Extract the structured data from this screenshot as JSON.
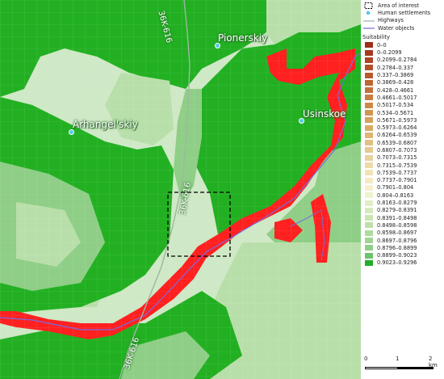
{
  "map": {
    "colors": {
      "base": "#cfe8c6",
      "light": "#b8dfa9",
      "mid": "#8fce86",
      "green": "#22b022",
      "red": "#ff2020",
      "grid": "#6fcf6f",
      "river": "#7a6adf",
      "road": "#9db8a0"
    },
    "settlements": [
      {
        "name": "Pionerskiy"
      },
      {
        "name": "Usinskoe"
      },
      {
        "name": "Arhangel'skiy"
      }
    ],
    "roads": [
      {
        "label": "36K-616"
      },
      {
        "label": "36K-616"
      },
      {
        "label": "36K-616"
      }
    ]
  },
  "legend": {
    "items": [
      {
        "label": "Area of interest",
        "icon": "dashed-box-icon"
      },
      {
        "label": "Human settlements",
        "icon": "dot-icon"
      },
      {
        "label": "Highways",
        "icon": "line-icon",
        "color": "#8ea6b2"
      },
      {
        "label": "Water objects",
        "icon": "line-icon",
        "color": "#6a5ad8"
      }
    ],
    "suitability_title": "Suitability",
    "classes": [
      {
        "label": "0–0",
        "color": "#9a2f1a"
      },
      {
        "label": "0–0.2099",
        "color": "#a53a1f"
      },
      {
        "label": "0.2099–0.2784",
        "color": "#ad4423"
      },
      {
        "label": "0.2784–0.337",
        "color": "#b34f28"
      },
      {
        "label": "0.337–0.3869",
        "color": "#b95a2e"
      },
      {
        "label": "0.3869–0.428",
        "color": "#bf6534"
      },
      {
        "label": "0.428–0.4661",
        "color": "#c4713a"
      },
      {
        "label": "0.4661–0.5017",
        "color": "#c97d41"
      },
      {
        "label": "0.5017–0.534",
        "color": "#cd8948"
      },
      {
        "label": "0.534–0.5671",
        "color": "#d19550"
      },
      {
        "label": "0.5671–0.5973",
        "color": "#d5a05a"
      },
      {
        "label": "0.5973–0.6264",
        "color": "#d9ab65"
      },
      {
        "label": "0.6264–0.6539",
        "color": "#ddb672"
      },
      {
        "label": "0.6539–0.6807",
        "color": "#e1c080"
      },
      {
        "label": "0.6807–0.7073",
        "color": "#e5c98e"
      },
      {
        "label": "0.7073–0.7315",
        "color": "#e9d29c"
      },
      {
        "label": "0.7315–0.7539",
        "color": "#eddba9"
      },
      {
        "label": "0.7539–0.7737",
        "color": "#f0e3b6"
      },
      {
        "label": "0.7737–0.7901",
        "color": "#f3ebc4"
      },
      {
        "label": "0.7901–0.804",
        "color": "#f5efcc"
      },
      {
        "label": "0.804–0.8163",
        "color": "#eef3cf"
      },
      {
        "label": "0.8163–0.8279",
        "color": "#e2efc6"
      },
      {
        "label": "0.8279–0.8391",
        "color": "#d5eabc"
      },
      {
        "label": "0.8391–0.8498",
        "color": "#c8e5b2"
      },
      {
        "label": "0.8498–0.8598",
        "color": "#bbe0a8"
      },
      {
        "label": "0.8598–0.8697",
        "color": "#aedb9e"
      },
      {
        "label": "0.8697–0.8796",
        "color": "#9fd593"
      },
      {
        "label": "0.8796–0.8899",
        "color": "#8ece86"
      },
      {
        "label": "0.8899–0.9023",
        "color": "#6cc36a"
      },
      {
        "label": "0.9023–0.9296",
        "color": "#1fae28"
      }
    ]
  },
  "scalebar": {
    "labels": [
      "0",
      "1",
      "2 km"
    ]
  }
}
